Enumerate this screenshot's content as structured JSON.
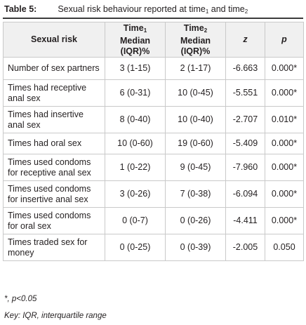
{
  "caption": {
    "number": "Table 5:",
    "title_main": "Sexual risk behaviour reported at time",
    "sub1": "1",
    "and_text": " and time",
    "sub2": "2"
  },
  "columns": {
    "risk": "Sexual risk",
    "time1_main": "Time",
    "time1_sub": "1",
    "time1_line2": "Median (IQR)%",
    "time2_main": "Time",
    "time2_sub": "2",
    "time2_line2": "Median (IQR)%",
    "z": "z",
    "p": "p"
  },
  "rows": [
    {
      "risk": "Number of sex partners",
      "t1": "3 (1-15)",
      "t2": "2 (1-17)",
      "z": "-6.663",
      "p": "0.000*"
    },
    {
      "risk": "Times had receptive anal sex",
      "t1": "6 (0-31)",
      "t2": "10 (0-45)",
      "z": "-5.551",
      "p": "0.000*"
    },
    {
      "risk": "Times had insertive anal sex",
      "t1": "8 (0-40)",
      "t2": "10 (0-40)",
      "z": "-2.707",
      "p": "0.010*"
    },
    {
      "risk": "Times had oral sex",
      "t1": "10 (0-60)",
      "t2": "19 (0-60)",
      "z": "-5.409",
      "p": "0.000*"
    },
    {
      "risk": "Times used condoms for receptive anal sex",
      "t1": "1 (0-22)",
      "t2": "9 (0-45)",
      "z": "-7.960",
      "p": "0.000*"
    },
    {
      "risk": "Times used condoms for insertive anal sex",
      "t1": "3 (0-26)",
      "t2": "7 (0-38)",
      "z": "-6.094",
      "p": "0.000*"
    },
    {
      "risk": "Times used condoms for oral sex",
      "t1": "0 (0-7)",
      "t2": "0 (0-26)",
      "z": "-4.411",
      "p": "0.000*"
    },
    {
      "risk": "Times traded sex for money",
      "t1": "0 (0-25)",
      "t2": "0 (0-39)",
      "z": "-2.005",
      "p": "0.050"
    }
  ],
  "footnotes": {
    "significance": "*, p<0.05",
    "key": "Key: IQR, interquartile range"
  },
  "colors": {
    "header_bg": "#f0f0f0",
    "border": "#c9c9c9",
    "text": "#231f20"
  }
}
